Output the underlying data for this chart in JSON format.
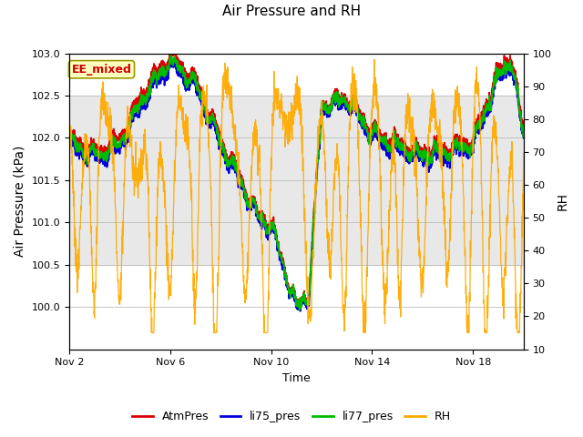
{
  "title": "Air Pressure and RH",
  "xlabel": "Time",
  "ylabel_left": "Air Pressure (kPa)",
  "ylabel_right": "RH",
  "ylim_left": [
    99.5,
    103.0
  ],
  "ylim_right": [
    10,
    100
  ],
  "yticks_left": [
    100.0,
    100.5,
    101.0,
    101.5,
    102.0,
    102.5,
    103.0
  ],
  "yticks_right": [
    10,
    20,
    30,
    40,
    50,
    60,
    70,
    80,
    90,
    100
  ],
  "xtick_positions": [
    0,
    4,
    8,
    12,
    16
  ],
  "xtick_labels": [
    "Nov 2",
    "Nov 6",
    "Nov 10",
    "Nov 14",
    "Nov 18"
  ],
  "annotation_text": "EE_mixed",
  "colors": {
    "AtmPres": "#dd0000",
    "li75_pres": "#0000dd",
    "li77_pres": "#00bb00",
    "RH": "#ffaa00"
  },
  "legend_labels": [
    "AtmPres",
    "li75_pres",
    "li77_pres",
    "RH"
  ],
  "background_color": "#ffffff",
  "shading_color": "#e8e8e8",
  "shading_lower": 100.5,
  "shading_upper": 102.5,
  "n_points": 2000,
  "total_days": 18
}
